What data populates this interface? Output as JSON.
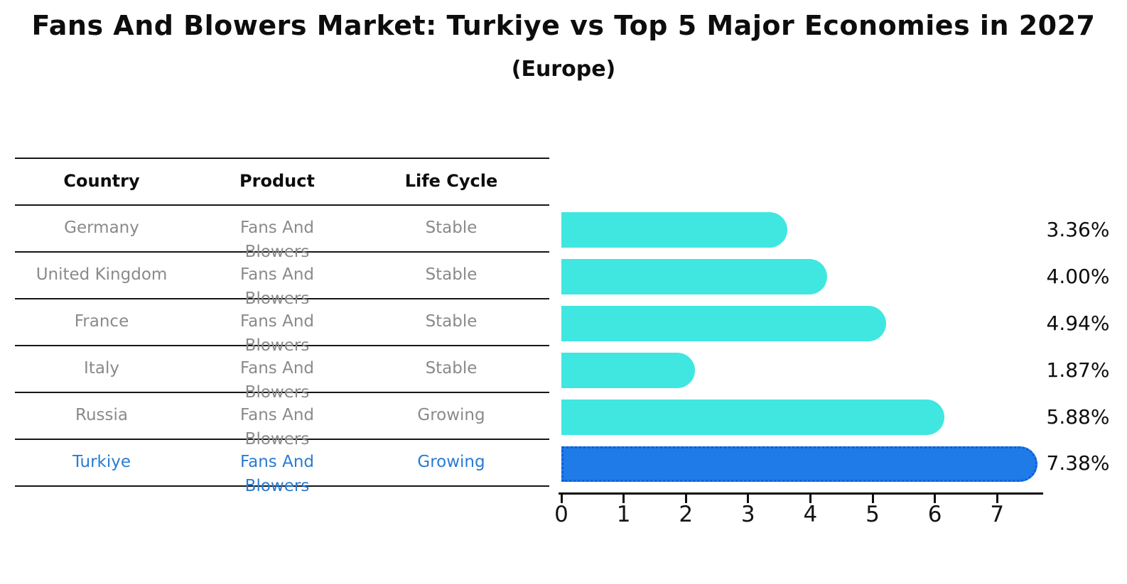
{
  "title": "Fans And Blowers Market: Turkiye vs Top 5 Major Economies in 2027",
  "subtitle": "(Europe)",
  "table": {
    "headers": [
      "Country",
      "Product",
      "Life Cycle"
    ],
    "rows": [
      {
        "country": "Germany",
        "product": "Fans And Blowers",
        "life_cycle": "Stable",
        "share": "3.36%",
        "highlight": false
      },
      {
        "country": "United Kingdom",
        "product": "Fans And Blowers",
        "life_cycle": "Stable",
        "share": "4.00%",
        "highlight": false
      },
      {
        "country": "France",
        "product": "Fans And Blowers",
        "life_cycle": "Stable",
        "share": "4.94%",
        "highlight": false
      },
      {
        "country": "Italy",
        "product": "Fans And Blowers",
        "life_cycle": "Stable",
        "share": "1.87%",
        "highlight": false
      },
      {
        "country": "Russia",
        "product": "Fans And Blowers",
        "life_cycle": "Growing",
        "share": "5.88%",
        "highlight": false
      },
      {
        "country": "Turkiye",
        "product": "Fans And Blowers",
        "life_cycle": "Growing",
        "share": "7.38%",
        "highlight": true
      }
    ]
  },
  "chart_data": {
    "type": "bar",
    "orientation": "horizontal",
    "title": "Fans And Blowers Market: Turkiye vs Top 5 Major Economies in 2027",
    "subtitle": "(Europe)",
    "categories": [
      "Germany",
      "United Kingdom",
      "France",
      "Italy",
      "Russia",
      "Turkiye"
    ],
    "values": [
      3.36,
      4.0,
      4.94,
      1.87,
      5.88,
      7.38
    ],
    "value_labels": [
      "3.36%",
      "4.00%",
      "4.94%",
      "1.87%",
      "5.88%",
      "7.38%"
    ],
    "x_ticks": [
      0,
      1,
      2,
      3,
      4,
      5,
      6,
      7
    ],
    "xlim": [
      0,
      7.7
    ],
    "grid": false,
    "legend": "none",
    "bar_color": "#40E7E0",
    "highlight_index": 5,
    "highlight_color": "#1E7BE8",
    "highlight_border_color": "#0E5FD6"
  },
  "colors": {
    "background": "#ffffff",
    "bar": "#40E7E0",
    "highlight_bar": "#1E7BE8",
    "highlight_border": "#0E5FD6",
    "row_text": "#8a8a8a",
    "highlight_text": "#2A7BD2",
    "line": "#161616"
  }
}
